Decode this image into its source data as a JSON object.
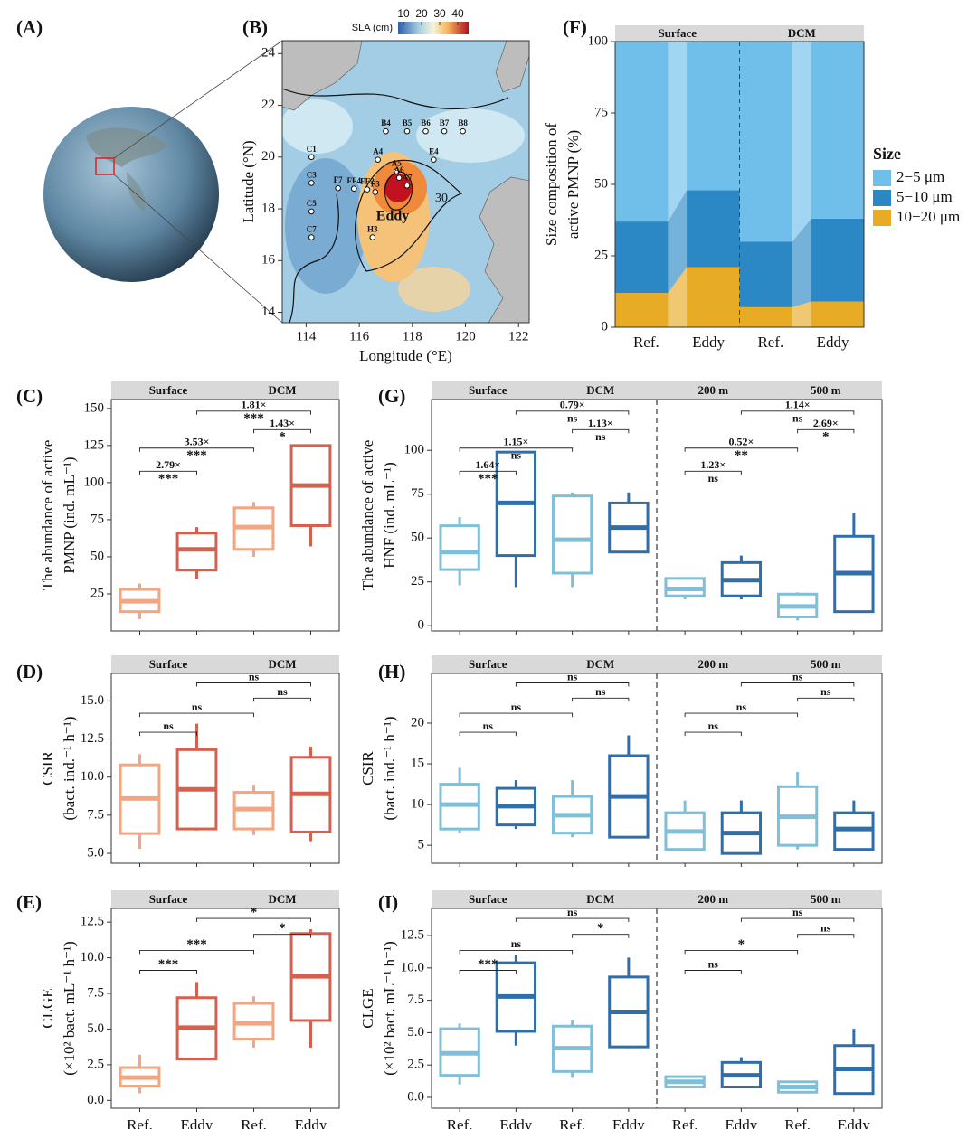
{
  "chart_data": [
    {
      "panel": "(A)",
      "type": "globe"
    },
    {
      "panel": "(B)",
      "type": "map",
      "xlabel": "Longitude (°E)",
      "ylabel": "Latitude (°N)",
      "xlim": [
        113.1,
        122.4
      ],
      "ylim": [
        13.6,
        24.5
      ],
      "xticks": [
        114,
        116,
        118,
        120,
        122
      ],
      "yticks": [
        14,
        16,
        18,
        20,
        22,
        24
      ],
      "colorbar": {
        "label": "SLA (cm)",
        "lim": [
          7,
          46
        ],
        "ticks": [
          10,
          20,
          30,
          40
        ]
      },
      "stations": [
        {
          "label": "B4",
          "x": 117.0,
          "y": 21.0
        },
        {
          "label": "B5",
          "x": 117.8,
          "y": 21.0
        },
        {
          "label": "B6",
          "x": 118.5,
          "y": 21.0
        },
        {
          "label": "B7",
          "x": 119.2,
          "y": 21.0
        },
        {
          "label": "B8",
          "x": 119.9,
          "y": 21.0
        },
        {
          "label": "C1",
          "x": 114.2,
          "y": 20.0
        },
        {
          "label": "C3",
          "x": 114.2,
          "y": 19.0
        },
        {
          "label": "C5",
          "x": 114.2,
          "y": 17.9
        },
        {
          "label": "C7",
          "x": 114.2,
          "y": 16.9
        },
        {
          "label": "A4",
          "x": 116.7,
          "y": 19.9
        },
        {
          "label": "E4",
          "x": 118.8,
          "y": 19.9
        },
        {
          "label": "A5",
          "x": 117.4,
          "y": 19.45
        },
        {
          "label": "A6",
          "x": 117.5,
          "y": 19.2
        },
        {
          "label": "A7",
          "x": 117.8,
          "y": 18.9
        },
        {
          "label": "F7",
          "x": 115.2,
          "y": 18.8
        },
        {
          "label": "FF4",
          "x": 115.8,
          "y": 18.78
        },
        {
          "label": "FF2",
          "x": 116.3,
          "y": 18.75
        },
        {
          "label": "F3",
          "x": 116.6,
          "y": 18.65
        },
        {
          "label": "H3",
          "x": 116.5,
          "y": 16.9
        }
      ],
      "annotations": [
        "Eddy",
        "30"
      ]
    },
    {
      "panel": "(F)",
      "type": "area",
      "facets": [
        "Surface",
        "DCM"
      ],
      "categories": [
        "Ref.",
        "Eddy",
        "Ref.",
        "Eddy"
      ],
      "ylabel": [
        "Size composition of",
        "active PMNP (%)"
      ],
      "ylim": [
        0,
        100
      ],
      "yticks": [
        0,
        25,
        50,
        75,
        100
      ],
      "legend_title": "Size",
      "series": [
        {
          "name": "2−5 μm",
          "color": "#6fbfea",
          "values": [
            63,
            52,
            70,
            62
          ]
        },
        {
          "name": "5−10 μm",
          "color": "#2b88c4",
          "values": [
            25,
            27,
            23,
            29
          ]
        },
        {
          "name": "10−20 μm",
          "color": "#e8ab26",
          "values": [
            12,
            21,
            7,
            9
          ]
        }
      ]
    },
    {
      "panel": "(C)",
      "type": "box",
      "facets": [
        "Surface",
        "DCM"
      ],
      "ylabel": [
        "The abundance of active",
        "PMNP (ind. mL⁻¹)"
      ],
      "ylim": [
        0,
        156
      ],
      "yticks": [
        25,
        50,
        75,
        100,
        125,
        150
      ],
      "colors": [
        "#f4a582",
        "#d6604d",
        "#f4a582",
        "#d6604d"
      ],
      "boxes": [
        {
          "whislo": 8,
          "q1": 13,
          "med": 20,
          "q3": 28,
          "whishi": 32
        },
        {
          "whislo": 35,
          "q1": 41,
          "med": 55,
          "q3": 66,
          "whishi": 70
        },
        {
          "whislo": 50,
          "q1": 55,
          "med": 70,
          "q3": 83,
          "whishi": 87
        },
        {
          "whislo": 57,
          "q1": 71,
          "med": 98,
          "q3": 125,
          "whishi": 125
        }
      ],
      "comparisons": [
        {
          "ratio": "2.79×",
          "sig": "***"
        },
        {
          "ratio": "3.53×",
          "sig": "***"
        },
        {
          "ratio": "1.43×",
          "sig": "*"
        },
        {
          "ratio": "1.81×",
          "sig": "***"
        }
      ]
    },
    {
      "panel": "(G)",
      "type": "box",
      "facets": [
        "Surface",
        "DCM",
        "200 m",
        "500 m"
      ],
      "ylabel": [
        "The abundance of active",
        "HNF (ind. mL⁻¹)"
      ],
      "ylim": [
        -3,
        129
      ],
      "yticks": [
        0,
        25,
        50,
        75,
        100
      ],
      "colors": [
        "#7fbfd8",
        "#2f6eaa",
        "#7fbfd8",
        "#2f6eaa",
        "#7fbfd8",
        "#2f6eaa",
        "#7fbfd8",
        "#2f6eaa"
      ],
      "boxes": [
        {
          "whislo": 23,
          "q1": 32,
          "med": 42,
          "q3": 57,
          "whishi": 62
        },
        {
          "whislo": 22,
          "q1": 40,
          "med": 70,
          "q3": 99,
          "whishi": 99
        },
        {
          "whislo": 22,
          "q1": 30,
          "med": 49,
          "q3": 74,
          "whishi": 76
        },
        {
          "whislo": 42,
          "q1": 42,
          "med": 56,
          "q3": 70,
          "whishi": 76
        },
        {
          "whislo": 15,
          "q1": 17,
          "med": 21,
          "q3": 27,
          "whishi": 27
        },
        {
          "whislo": 15,
          "q1": 17,
          "med": 26,
          "q3": 36,
          "whishi": 40
        },
        {
          "whislo": 3,
          "q1": 5,
          "med": 11,
          "q3": 18,
          "whishi": 19
        },
        {
          "whislo": 8,
          "q1": 8,
          "med": 30,
          "q3": 51,
          "whishi": 64
        }
      ],
      "comparisons": [
        {
          "ratio": "1.64×",
          "sig": "***"
        },
        {
          "ratio": "1.15×",
          "sig": "ns"
        },
        {
          "ratio": "1.13×",
          "sig": "ns"
        },
        {
          "ratio": "0.79×",
          "sig": "ns"
        },
        {
          "ratio": "1.23×",
          "sig": "ns"
        },
        {
          "ratio": "0.52×",
          "sig": "**"
        },
        {
          "ratio": "2.69×",
          "sig": "*"
        },
        {
          "ratio": "1.14×",
          "sig": "ns"
        }
      ]
    },
    {
      "panel": "(D)",
      "type": "box",
      "facets": [
        "Surface",
        "DCM"
      ],
      "ylabel": [
        "CSIR",
        "(bact. ind.⁻¹ h⁻¹)"
      ],
      "ylim": [
        4.35,
        16.8
      ],
      "yticks": [
        {
          "value": 5,
          "label": "5.0"
        },
        7.5,
        {
          "value": 10,
          "label": "10.0"
        },
        12.5,
        {
          "value": 15,
          "label": "15.0"
        }
      ],
      "colors": [
        "#f4a582",
        "#d6604d",
        "#f4a582",
        "#d6604d"
      ],
      "boxes": [
        {
          "whislo": 5.3,
          "q1": 6.3,
          "med": 8.6,
          "q3": 10.8,
          "whishi": 11.5
        },
        {
          "whislo": 6.5,
          "q1": 6.6,
          "med": 9.2,
          "q3": 11.8,
          "whishi": 13.5
        },
        {
          "whislo": 6.2,
          "q1": 6.6,
          "med": 7.9,
          "q3": 9.0,
          "whishi": 9.5
        },
        {
          "whislo": 5.8,
          "q1": 6.4,
          "med": 8.9,
          "q3": 11.3,
          "whishi": 12.0
        }
      ],
      "comparisons": [
        {
          "sig": "ns"
        },
        {
          "sig": "ns"
        },
        {
          "sig": "ns"
        },
        {
          "sig": "ns"
        }
      ]
    },
    {
      "panel": "(H)",
      "type": "box",
      "facets": [
        "Surface",
        "DCM",
        "200 m",
        "500 m"
      ],
      "ylabel": [
        "CSIR",
        "(bact. ind.⁻¹ h⁻¹)"
      ],
      "ylim": [
        2.8,
        26.1
      ],
      "yticks": [
        5,
        10,
        15,
        20
      ],
      "colors": [
        "#7fbfd8",
        "#2f6eaa",
        "#7fbfd8",
        "#2f6eaa",
        "#7fbfd8",
        "#2f6eaa",
        "#7fbfd8",
        "#2f6eaa"
      ],
      "boxes": [
        {
          "whislo": 6.5,
          "q1": 7,
          "med": 10,
          "q3": 12.5,
          "whishi": 14.5
        },
        {
          "whislo": 7,
          "q1": 7.5,
          "med": 9.8,
          "q3": 12,
          "whishi": 13
        },
        {
          "whislo": 6,
          "q1": 6.5,
          "med": 8.7,
          "q3": 11,
          "whishi": 13
        },
        {
          "whislo": 6,
          "q1": 6,
          "med": 11,
          "q3": 16,
          "whishi": 18.5
        },
        {
          "whislo": 4.5,
          "q1": 4.5,
          "med": 6.7,
          "q3": 9,
          "whishi": 10.5
        },
        {
          "whislo": 4,
          "q1": 4,
          "med": 6.5,
          "q3": 9,
          "whishi": 10.5
        },
        {
          "whislo": 4.5,
          "q1": 5,
          "med": 8.5,
          "q3": 12.2,
          "whishi": 14
        },
        {
          "whislo": 4.5,
          "q1": 4.5,
          "med": 7,
          "q3": 9,
          "whishi": 10.5
        }
      ],
      "comparisons": [
        {
          "sig": "ns"
        },
        {
          "sig": "ns"
        },
        {
          "sig": "ns"
        },
        {
          "sig": "ns"
        },
        {
          "sig": "ns"
        },
        {
          "sig": "ns"
        },
        {
          "sig": "ns"
        },
        {
          "sig": "ns"
        }
      ]
    },
    {
      "panel": "(E)",
      "type": "box",
      "facets": [
        "Surface",
        "DCM"
      ],
      "categories": [
        "Ref.",
        "Eddy",
        "Ref.",
        "Eddy"
      ],
      "ylabel": [
        "CLGE",
        "(×10² bact. mL⁻¹ h⁻¹)"
      ],
      "ylim": [
        -0.55,
        13.46
      ],
      "yticks": [
        {
          "value": 0,
          "label": "0.0"
        },
        2.5,
        {
          "value": 5,
          "label": "5.0"
        },
        7.5,
        {
          "value": 10,
          "label": "10.0"
        },
        12.5
      ],
      "colors": [
        "#f4a582",
        "#d6604d",
        "#f4a582",
        "#d6604d"
      ],
      "boxes": [
        {
          "whislo": 0.5,
          "q1": 1.0,
          "med": 1.6,
          "q3": 2.3,
          "whishi": 3.2
        },
        {
          "whislo": 2.9,
          "q1": 2.9,
          "med": 5.1,
          "q3": 7.2,
          "whishi": 8.3
        },
        {
          "whislo": 3.7,
          "q1": 4.3,
          "med": 5.4,
          "q3": 6.8,
          "whishi": 7.3
        },
        {
          "whislo": 3.7,
          "q1": 5.6,
          "med": 8.7,
          "q3": 11.7,
          "whishi": 12.0
        }
      ],
      "comparisons": [
        {
          "sig": "***"
        },
        {
          "sig": "***"
        },
        {
          "sig": "*"
        },
        {
          "sig": "*"
        }
      ]
    },
    {
      "panel": "(I)",
      "type": "box",
      "facets": [
        "Surface",
        "DCM",
        "200 m",
        "500 m"
      ],
      "categories": [
        "Ref.",
        "Eddy",
        "Ref.",
        "Eddy",
        "Ref.",
        "Eddy",
        "Ref.",
        "Eddy"
      ],
      "ylabel": [
        "CLGE",
        "(×10² bact. mL⁻¹ h⁻¹)"
      ],
      "ylim": [
        -0.84,
        14.6
      ],
      "yticks": [
        {
          "value": 0,
          "label": "0.0"
        },
        2.5,
        {
          "value": 5,
          "label": "5.0"
        },
        7.5,
        {
          "value": 10,
          "label": "10.0"
        },
        12.5
      ],
      "colors": [
        "#7fbfd8",
        "#2f6eaa",
        "#7fbfd8",
        "#2f6eaa",
        "#7fbfd8",
        "#2f6eaa",
        "#7fbfd8",
        "#2f6eaa"
      ],
      "boxes": [
        {
          "whislo": 1,
          "q1": 1.7,
          "med": 3.4,
          "q3": 5.3,
          "whishi": 5.7
        },
        {
          "whislo": 4,
          "q1": 5.1,
          "med": 7.8,
          "q3": 10.4,
          "whishi": 11
        },
        {
          "whislo": 1.5,
          "q1": 2,
          "med": 3.8,
          "q3": 5.5,
          "whishi": 6
        },
        {
          "whislo": 3.8,
          "q1": 3.9,
          "med": 6.6,
          "q3": 9.3,
          "whishi": 10.8
        },
        {
          "whislo": 0.8,
          "q1": 0.8,
          "med": 1.2,
          "q3": 1.6,
          "whishi": 1.6
        },
        {
          "whislo": 0.8,
          "q1": 0.8,
          "med": 1.7,
          "q3": 2.7,
          "whishi": 3.1
        },
        {
          "whislo": 0.3,
          "q1": 0.4,
          "med": 0.8,
          "q3": 1.2,
          "whishi": 1.2
        },
        {
          "whislo": 0.3,
          "q1": 0.3,
          "med": 2.2,
          "q3": 4,
          "whishi": 5.3
        }
      ],
      "comparisons": [
        {
          "sig": "***"
        },
        {
          "sig": "ns"
        },
        {
          "sig": "*"
        },
        {
          "sig": "ns"
        },
        {
          "sig": "ns"
        },
        {
          "sig": "*"
        },
        {
          "sig": "ns"
        },
        {
          "sig": "ns"
        }
      ]
    }
  ]
}
